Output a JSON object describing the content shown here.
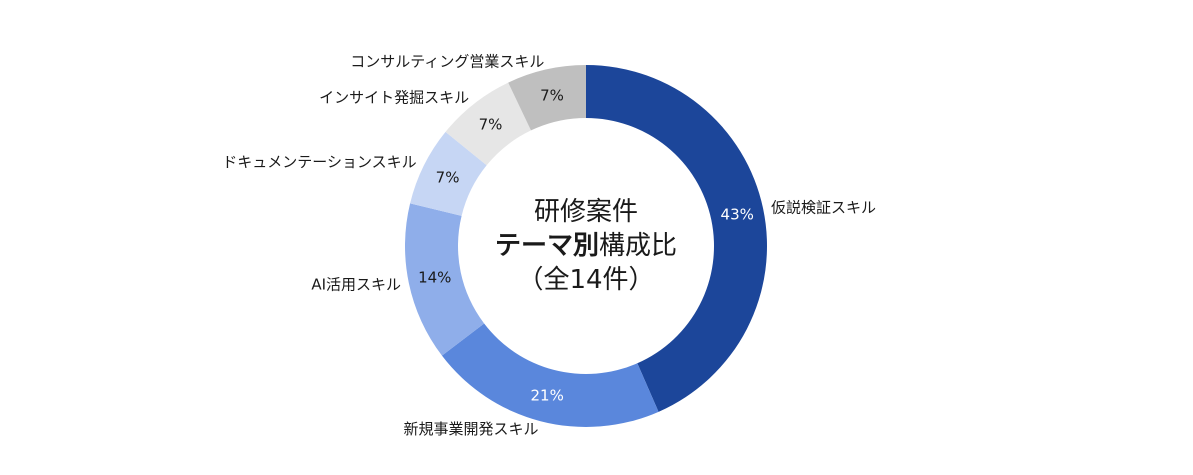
{
  "chart_data": {
    "type": "pie",
    "title_lines": [
      {
        "parts": [
          {
            "text": "研修案件",
            "bold": false
          }
        ]
      },
      {
        "parts": [
          {
            "text": "テーマ別",
            "bold": true
          },
          {
            "text": "構成比",
            "bold": false
          }
        ]
      },
      {
        "parts": [
          {
            "text": "（全14件）",
            "bold": false
          }
        ]
      }
    ],
    "hole": true,
    "start_angle_deg": 0,
    "direction": "clockwise",
    "slices": [
      {
        "category": "仮説検証スキル",
        "value": 43,
        "label": "43%",
        "color": "#1c469a",
        "label_color": "#ffffff"
      },
      {
        "category": "新規事業開発スキル",
        "value": 21,
        "label": "21%",
        "color": "#5a87dc",
        "label_color": "#ffffff"
      },
      {
        "category": "AI活用スキル",
        "value": 14,
        "label": "14%",
        "color": "#8faeea",
        "label_color": "#1a1a1a"
      },
      {
        "category": "ドキュメンテーションスキル",
        "value": 7,
        "label": "7%",
        "color": "#c6d6f4",
        "label_color": "#1a1a1a"
      },
      {
        "category": "インサイト発掘スキル",
        "value": 7,
        "label": "7%",
        "color": "#e6e6e6",
        "label_color": "#1a1a1a"
      },
      {
        "category": "コンサルティング営業スキル",
        "value": 7,
        "label": "7%",
        "color": "#bfbfbf",
        "label_color": "#1a1a1a"
      }
    ],
    "legend": "none"
  }
}
